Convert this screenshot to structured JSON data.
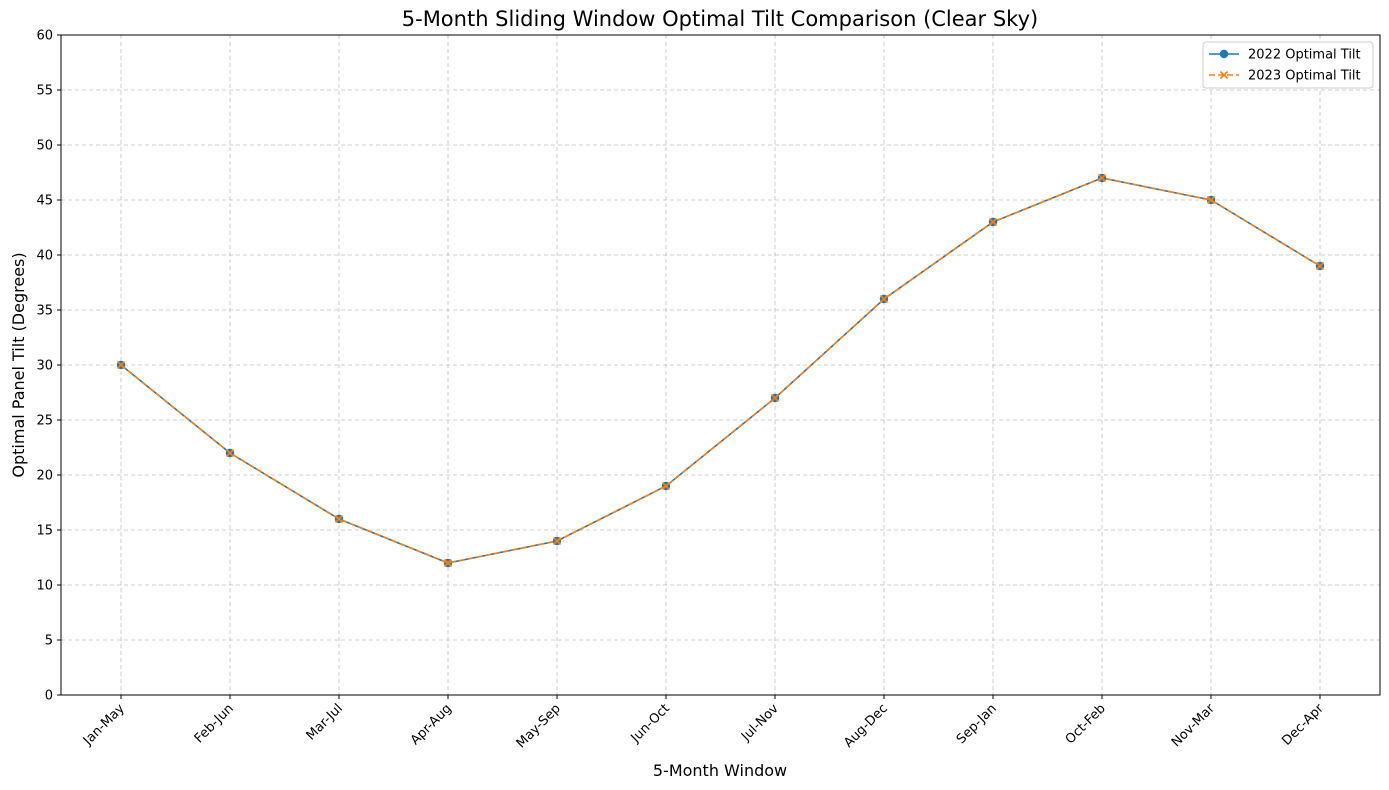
{
  "chart_data": {
    "type": "line",
    "title": "5-Month Sliding Window Optimal Tilt Comparison (Clear Sky)",
    "xlabel": "5-Month Window",
    "ylabel": "Optimal Panel Tilt (Degrees)",
    "categories": [
      "Jan-May",
      "Feb-Jun",
      "Mar-Jul",
      "Apr-Aug",
      "May-Sep",
      "Jun-Oct",
      "Jul-Nov",
      "Aug-Dec",
      "Sep-Jan",
      "Oct-Feb",
      "Nov-Mar",
      "Dec-Apr"
    ],
    "ylim": [
      0,
      60
    ],
    "yticks": [
      0,
      5,
      10,
      15,
      20,
      25,
      30,
      35,
      40,
      45,
      50,
      55,
      60
    ],
    "grid": true,
    "legend_position": "top-right",
    "series": [
      {
        "name": "2022 Optimal Tilt",
        "values": [
          30,
          22,
          16,
          12,
          14,
          19,
          27,
          36,
          43,
          47,
          45,
          39
        ],
        "color": "#1f77b4",
        "marker": "circle",
        "line_style": "solid"
      },
      {
        "name": "2023 Optimal Tilt",
        "values": [
          30,
          22,
          16,
          12,
          14,
          19,
          27,
          36,
          43,
          47,
          45,
          39
        ],
        "color": "#ff7f0e",
        "marker": "x",
        "line_style": "dashed"
      }
    ]
  }
}
